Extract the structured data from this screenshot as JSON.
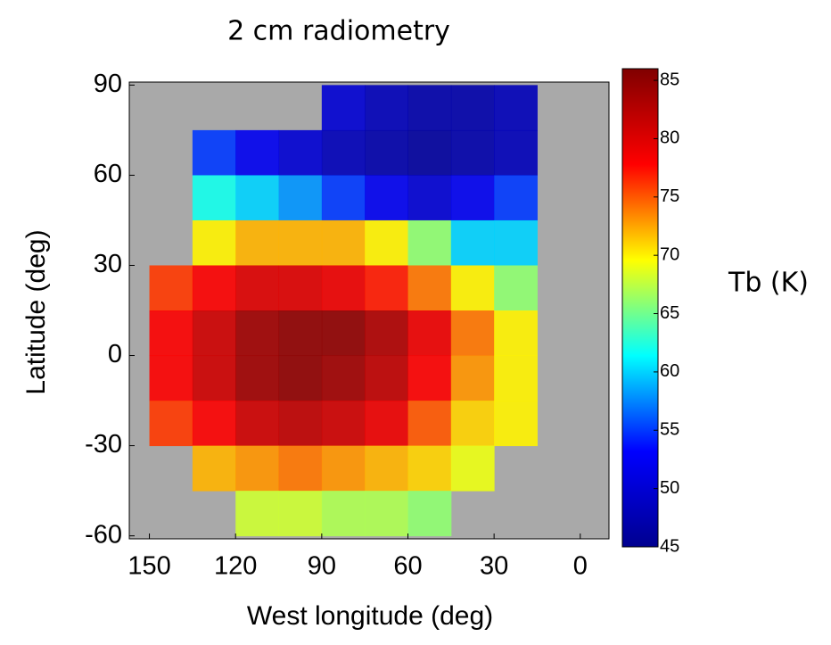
{
  "chart_data": {
    "type": "heatmap",
    "title": "2 cm radiometry",
    "x_label": "West longitude (deg)",
    "y_label": "Latitude (deg)",
    "colorbar_label": "Tb (K)",
    "x": [
      142.5,
      127.5,
      112.5,
      97.5,
      82.5,
      67.5,
      52.5,
      37.5,
      22.5,
      7.5
    ],
    "y": [
      82.5,
      67.5,
      52.5,
      37.5,
      22.5,
      7.5,
      -7.5,
      -22.5,
      -37.5,
      -52.5
    ],
    "z": [
      [
        null,
        null,
        null,
        null,
        50,
        48,
        47,
        47,
        48,
        null
      ],
      [
        null,
        55,
        52,
        50,
        48,
        47,
        46,
        47,
        48,
        null
      ],
      [
        null,
        62,
        60,
        58,
        55,
        52,
        50,
        52,
        55,
        null
      ],
      [
        null,
        70,
        72,
        72,
        72,
        70,
        66,
        60,
        60,
        null
      ],
      [
        76,
        78,
        80,
        80,
        79,
        77,
        74,
        70,
        66,
        null
      ],
      [
        78,
        81,
        84,
        85,
        85,
        83,
        79,
        74,
        70,
        null
      ],
      [
        78,
        81,
        84,
        85,
        84,
        82,
        78,
        73,
        70,
        null
      ],
      [
        76,
        78,
        81,
        82,
        81,
        79,
        75,
        71,
        70,
        null
      ],
      [
        null,
        72,
        73,
        74,
        73,
        72,
        71,
        69,
        null,
        null
      ],
      [
        null,
        null,
        68,
        68,
        67,
        67,
        66,
        null,
        null,
        null
      ]
    ],
    "xlim": [
      157,
      -10
    ],
    "xticks": [
      150,
      120,
      90,
      60,
      30,
      0
    ],
    "ylim": [
      -61,
      91
    ],
    "yticks": [
      90,
      60,
      30,
      0,
      -30,
      -60
    ],
    "clim": [
      45,
      86
    ],
    "cticks": [
      85,
      80,
      75,
      70,
      65,
      60,
      55,
      50,
      45
    ],
    "colormap": [
      "#00008f",
      "#0000ff",
      "#00ffff",
      "#ffff00",
      "#ff0000",
      "#800000"
    ]
  }
}
